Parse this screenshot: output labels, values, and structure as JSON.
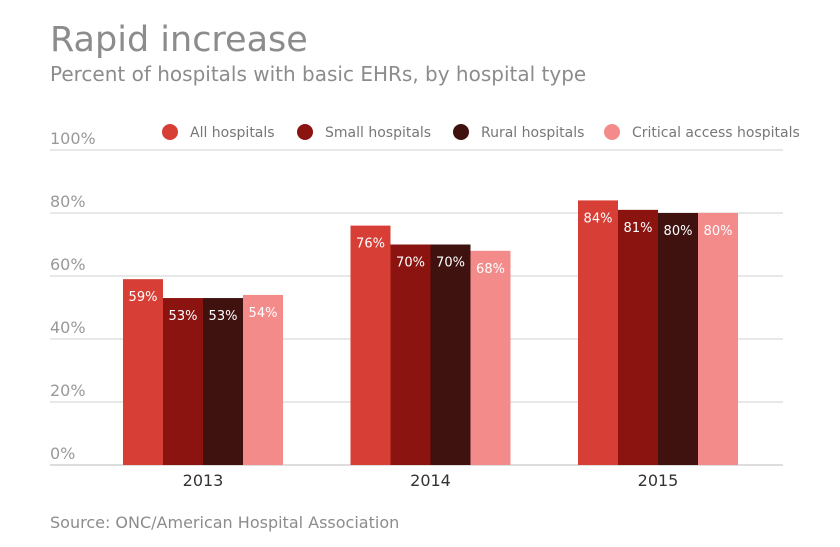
{
  "title": "Rapid increase",
  "subtitle": "Percent of hospitals with basic EHRs, by hospital type",
  "source": "Source: ONC/American Hospital Association",
  "chart_data": {
    "type": "bar",
    "categories": [
      "2013",
      "2014",
      "2015"
    ],
    "series": [
      {
        "name": "All hospitals",
        "color": "#d73f36",
        "values": [
          59,
          76,
          84
        ],
        "labels": [
          "59%",
          "76%",
          "84%"
        ]
      },
      {
        "name": "Small hospitals",
        "color": "#8b1410",
        "values": [
          53,
          70,
          81
        ],
        "labels": [
          "53%",
          "70%",
          "81%"
        ]
      },
      {
        "name": "Rural hospitals",
        "color": "#3f1210",
        "values": [
          53,
          70,
          80
        ],
        "labels": [
          "53%",
          "70%",
          "80%"
        ]
      },
      {
        "name": "Critical access hospitals",
        "color": "#f38b8b",
        "values": [
          54,
          68,
          80
        ],
        "labels": [
          "54%",
          "68%",
          "80%"
        ]
      }
    ],
    "ylim": [
      0,
      100
    ],
    "yticks": [
      0,
      20,
      40,
      60,
      80,
      100
    ],
    "ytick_labels": [
      "0%",
      "20%",
      "40%",
      "60%",
      "80%",
      "100%"
    ],
    "grid": true,
    "legend_position": "top"
  }
}
